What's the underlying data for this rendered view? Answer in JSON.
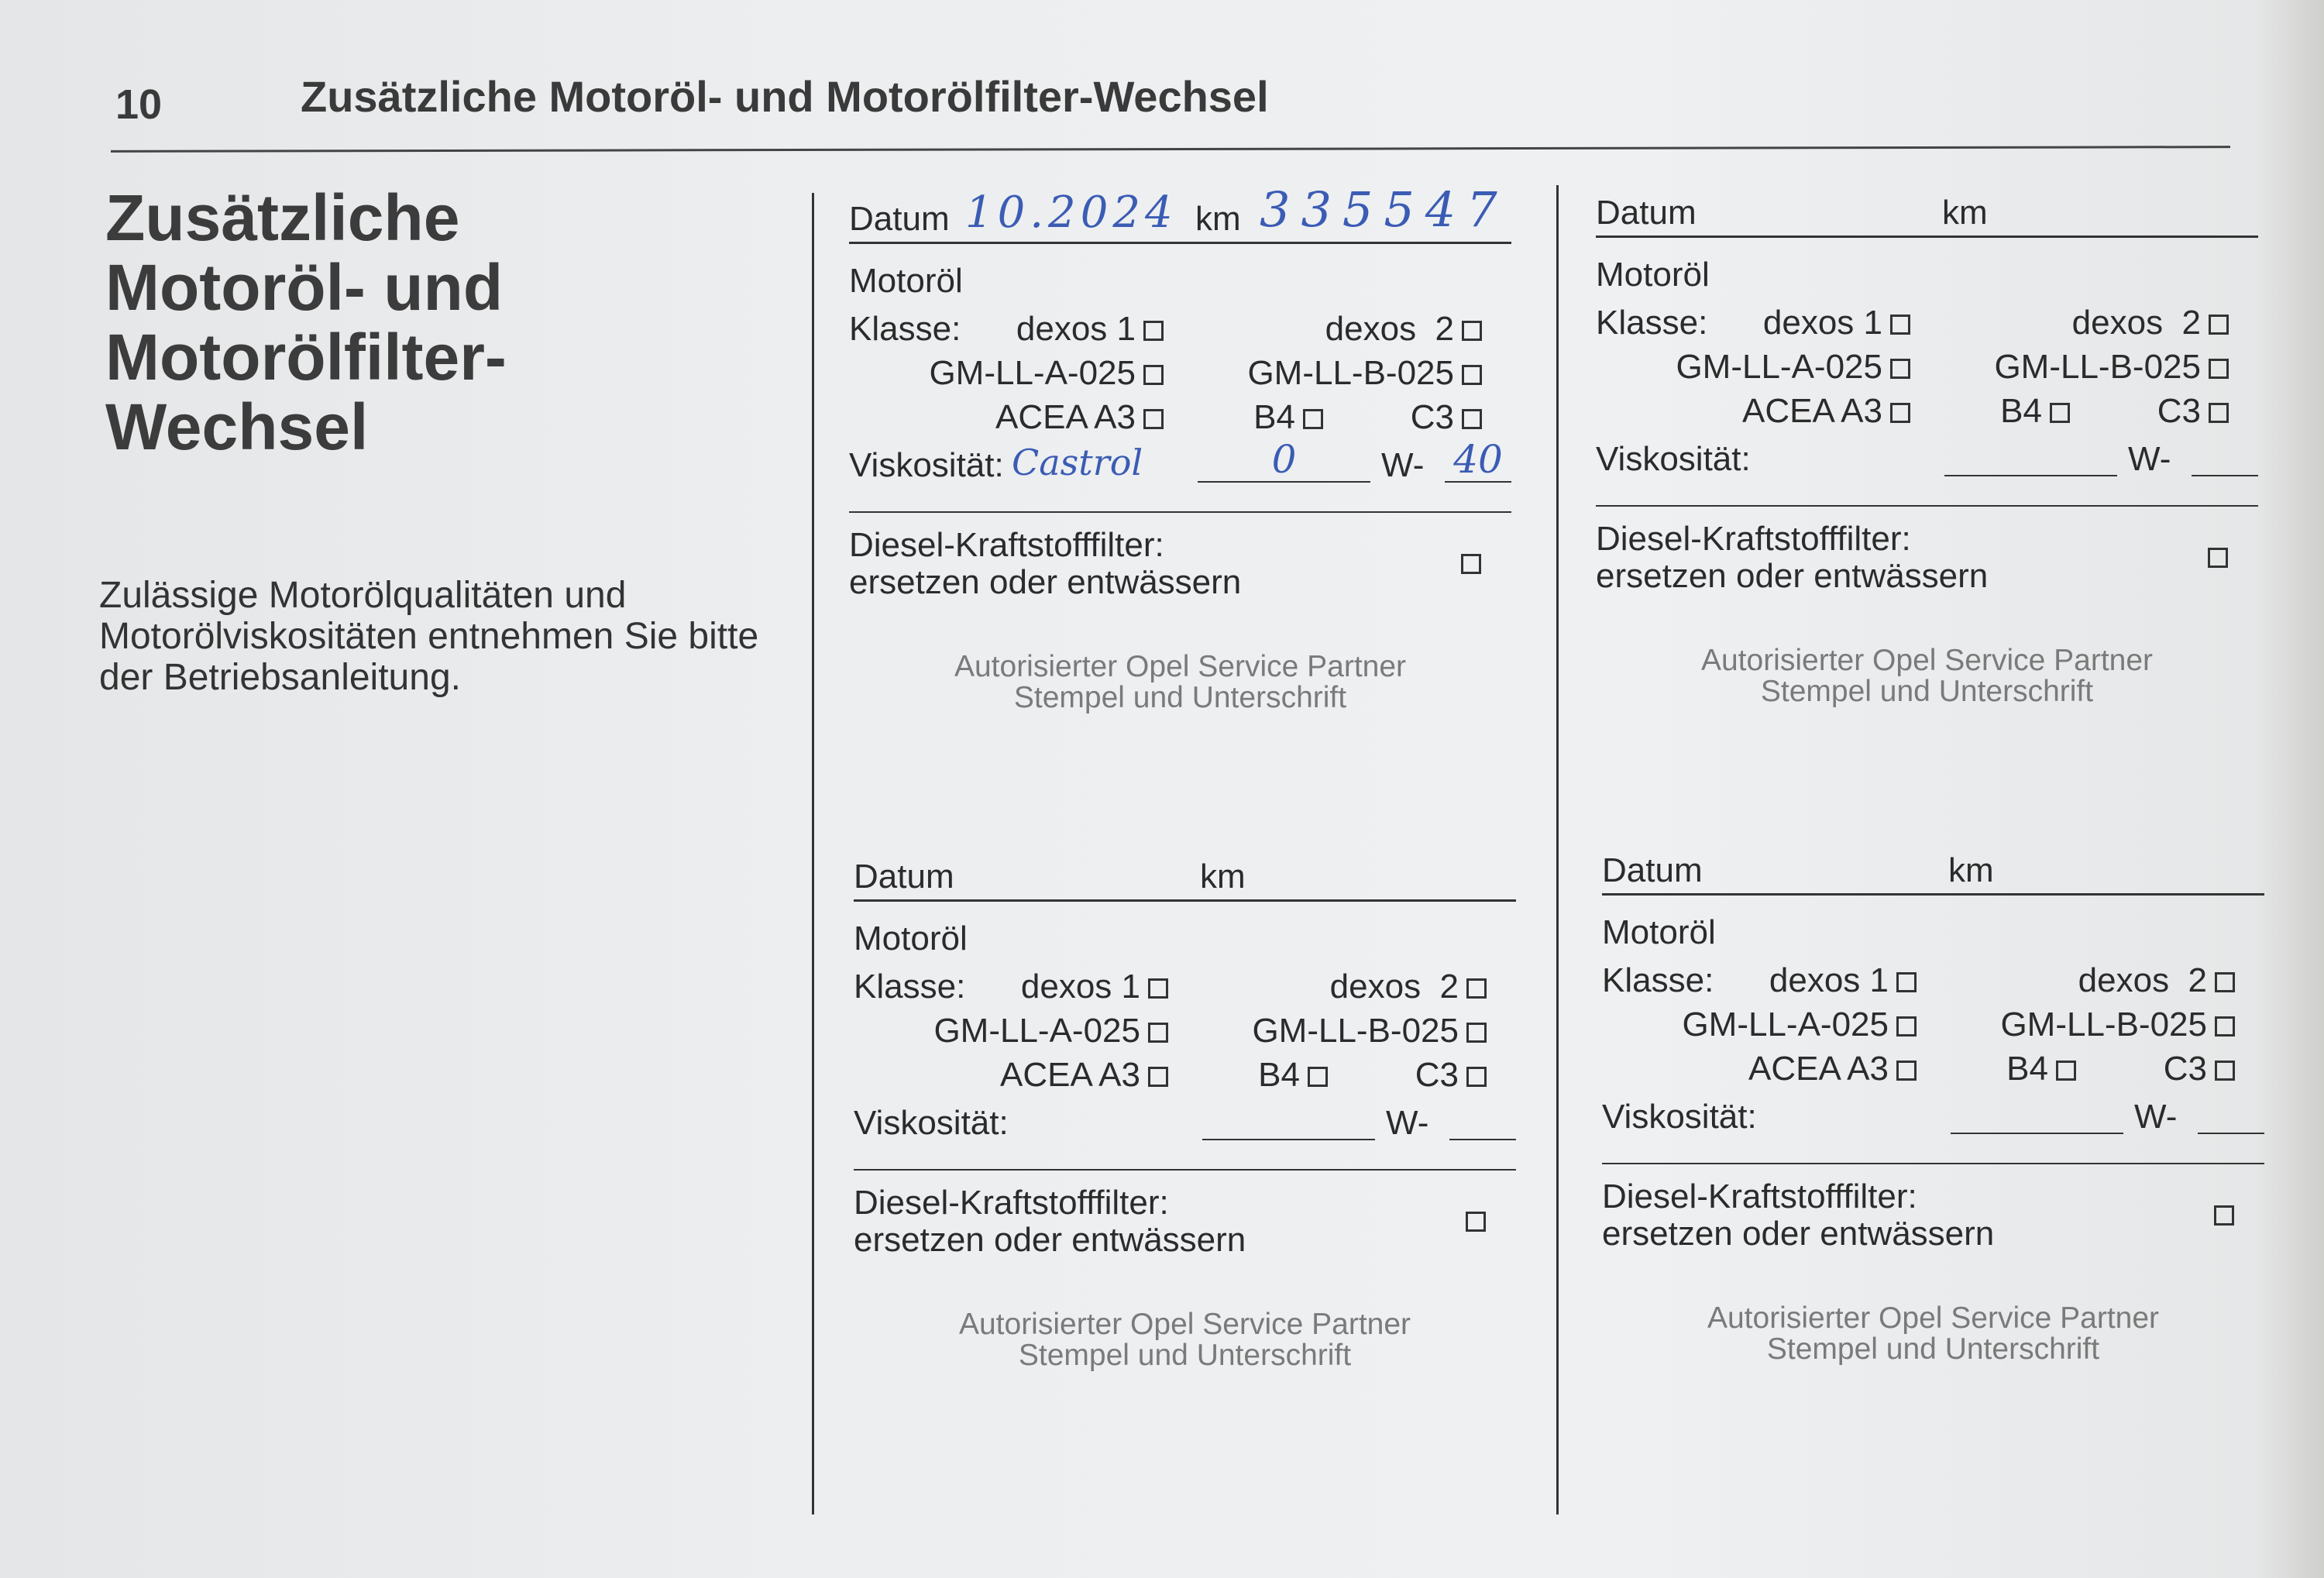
{
  "header": {
    "page_number": "10",
    "title": "Zusätzliche Motoröl- und Motorölfilter-Wechsel"
  },
  "left": {
    "title": "Zusätzliche Motoröl- und Motorölfilter-Wechsel",
    "text": "Zulässige Motorölqualitäten und Motorölviskositäten entnehmen Sie bitte der Betriebsanleitung."
  },
  "labels": {
    "datum": "Datum",
    "km": "km",
    "motoroel": "Motoröl",
    "klasse": "Klasse:",
    "dexos1": "dexos 1",
    "dexos2": "dexos  2",
    "gm_a": "GM-LL-A-025",
    "gm_b": "GM-LL-B-025",
    "acea": "ACEA A3",
    "b4": "B4",
    "c3": "C3",
    "viskositaet": "Viskosität:",
    "w": "W-",
    "diesel_1": "Diesel-Kraftstofffilter:",
    "diesel_2": "ersetzen oder entwässern",
    "stamp_1": "Autorisierter Opel Service Partner",
    "stamp_2": "Stempel und Unterschrift"
  },
  "forms": [
    {
      "datum": "10.2024",
      "km": "335547",
      "oil_brand": "Castrol",
      "visc_low": "0",
      "visc_high": "40",
      "checks": {
        "dexos1": false,
        "dexos2": false,
        "gm_a": false,
        "gm_b": false,
        "acea": false,
        "b4": false,
        "c3": false,
        "diesel": false
      }
    },
    {
      "datum": "",
      "km": "",
      "oil_brand": "",
      "visc_low": "",
      "visc_high": "",
      "checks": {
        "dexos1": false,
        "dexos2": false,
        "gm_a": false,
        "gm_b": false,
        "acea": false,
        "b4": false,
        "c3": false,
        "diesel": false
      }
    },
    {
      "datum": "",
      "km": "",
      "oil_brand": "",
      "visc_low": "",
      "visc_high": "",
      "checks": {
        "dexos1": false,
        "dexos2": false,
        "gm_a": false,
        "gm_b": false,
        "acea": false,
        "b4": false,
        "c3": false,
        "diesel": false
      }
    },
    {
      "datum": "",
      "km": "",
      "oil_brand": "",
      "visc_low": "",
      "visc_high": "",
      "checks": {
        "dexos1": false,
        "dexos2": false,
        "gm_a": false,
        "gm_b": false,
        "acea": false,
        "b4": false,
        "c3": false,
        "diesel": false
      }
    }
  ],
  "colors": {
    "ink": "#2b2b2b",
    "handwriting": "#3b5cb4",
    "stamp_text": "#7a7a7a",
    "paper": "#eceef0"
  }
}
